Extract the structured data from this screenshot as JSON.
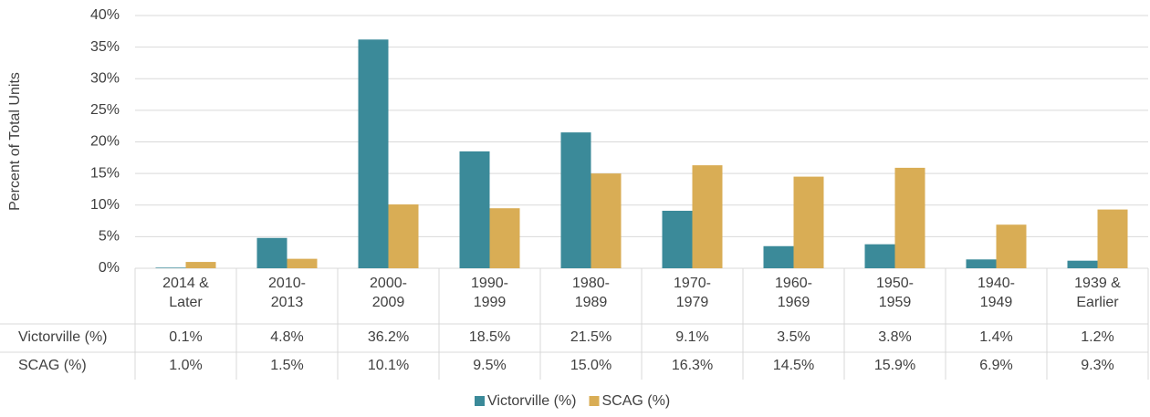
{
  "chart_data": {
    "type": "bar",
    "y_label": "Percent of Total Units",
    "categories": [
      "2014 & Later",
      "2010-2013",
      "2000-2009",
      "1990-1999",
      "1980-1989",
      "1970-1979",
      "1960-1969",
      "1950-1959",
      "1940-1949",
      "1939 & Earlier"
    ],
    "series": [
      {
        "name": "Victorville (%)",
        "color": "#3b8a99",
        "values": [
          0.1,
          4.8,
          36.2,
          18.5,
          21.5,
          9.1,
          3.5,
          3.8,
          1.4,
          1.2
        ],
        "value_labels": [
          "0.1%",
          "4.8%",
          "36.2%",
          "18.5%",
          "21.5%",
          "9.1%",
          "3.5%",
          "3.8%",
          "1.4%",
          "1.2%"
        ]
      },
      {
        "name": "SCAG (%)",
        "color": "#d9ad55",
        "values": [
          1.0,
          1.5,
          10.1,
          9.5,
          15.0,
          16.3,
          14.5,
          15.9,
          6.9,
          9.3
        ],
        "value_labels": [
          "1.0%",
          "1.5%",
          "10.1%",
          "9.5%",
          "15.0%",
          "16.3%",
          "14.5%",
          "15.9%",
          "6.9%",
          "9.3%"
        ]
      }
    ],
    "ylim": [
      0,
      40
    ],
    "yticks": [
      {
        "value": 0,
        "label": "0%"
      },
      {
        "value": 5,
        "label": "5%"
      },
      {
        "value": 10,
        "label": "10%"
      },
      {
        "value": 15,
        "label": "15%"
      },
      {
        "value": 20,
        "label": "20%"
      },
      {
        "value": 25,
        "label": "25%"
      },
      {
        "value": 30,
        "label": "30%"
      },
      {
        "value": 35,
        "label": "35%"
      },
      {
        "value": 40,
        "label": "40%"
      }
    ],
    "grid": true,
    "legend": "bottom"
  }
}
